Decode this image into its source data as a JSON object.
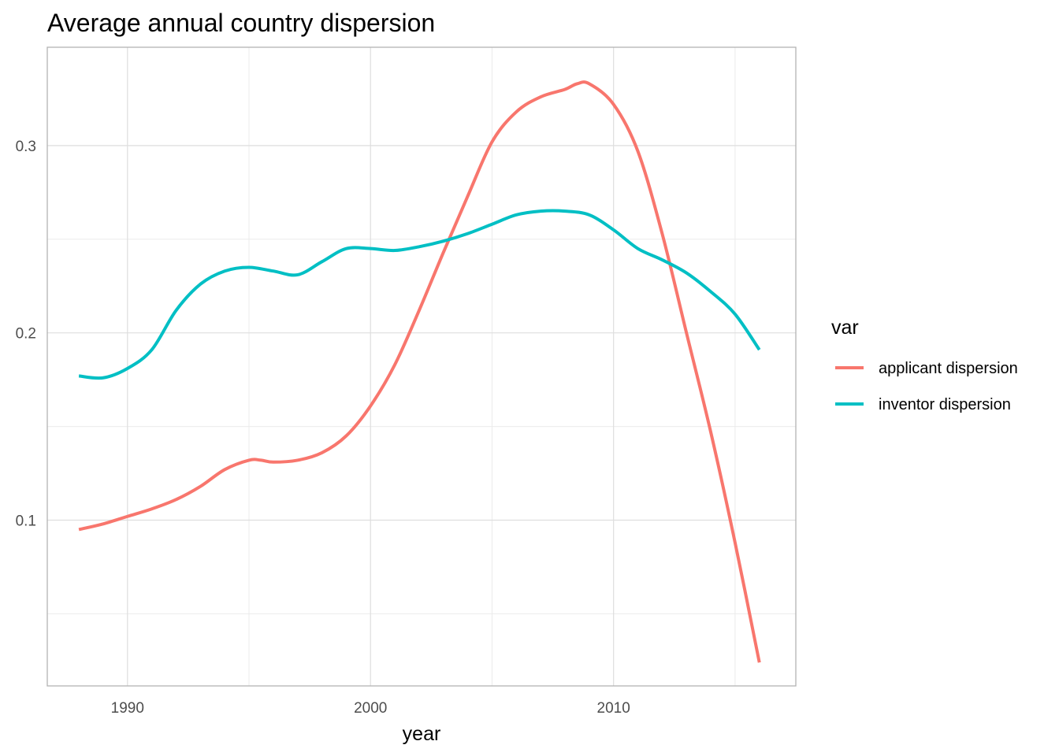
{
  "chart_data": {
    "type": "line",
    "title": "Average annual country dispersion",
    "xlabel": "year",
    "ylabel": "",
    "xlim": [
      1986.7,
      2017.5
    ],
    "ylim": [
      0.0115,
      0.3525
    ],
    "x_ticks": [
      1990,
      2000,
      2010
    ],
    "x_minor_ticks": [
      1995,
      2005,
      2015
    ],
    "y_ticks": [
      0.1,
      0.2,
      0.3
    ],
    "y_minor_ticks": [
      0.05,
      0.15,
      0.25
    ],
    "grid": true,
    "legend": {
      "title": "var",
      "placement": "right"
    },
    "series": [
      {
        "name": "applicant dispersion",
        "color": "#F8766D",
        "x": [
          1988,
          1989,
          1990,
          1991,
          1992,
          1993,
          1994,
          1995,
          1995.5,
          1996,
          1997,
          1998,
          1999,
          2000,
          2001,
          2002,
          2003,
          2004,
          2005,
          2006,
          2007,
          2008,
          2008.5,
          2009,
          2010,
          2011,
          2012,
          2013,
          2014,
          2015,
          2016
        ],
        "values": [
          0.095,
          0.098,
          0.102,
          0.106,
          0.111,
          0.118,
          0.127,
          0.132,
          0.132,
          0.131,
          0.132,
          0.136,
          0.145,
          0.161,
          0.183,
          0.212,
          0.243,
          0.273,
          0.302,
          0.318,
          0.326,
          0.33,
          0.333,
          0.333,
          0.322,
          0.297,
          0.253,
          0.2,
          0.147,
          0.088,
          0.024
        ]
      },
      {
        "name": "inventor dispersion",
        "color": "#00BFC4",
        "x": [
          1988,
          1989,
          1990,
          1991,
          1992,
          1993,
          1994,
          1995,
          1996,
          1997,
          1998,
          1999,
          2000,
          2001,
          2002,
          2003,
          2004,
          2005,
          2006,
          2007,
          2008,
          2009,
          2010,
          2011,
          2012,
          2013,
          2014,
          2015,
          2016
        ],
        "values": [
          0.177,
          0.176,
          0.181,
          0.191,
          0.212,
          0.226,
          0.233,
          0.235,
          0.233,
          0.231,
          0.238,
          0.245,
          0.245,
          0.244,
          0.246,
          0.249,
          0.253,
          0.258,
          0.263,
          0.265,
          0.265,
          0.263,
          0.255,
          0.245,
          0.239,
          0.232,
          0.222,
          0.21,
          0.191
        ]
      }
    ]
  }
}
